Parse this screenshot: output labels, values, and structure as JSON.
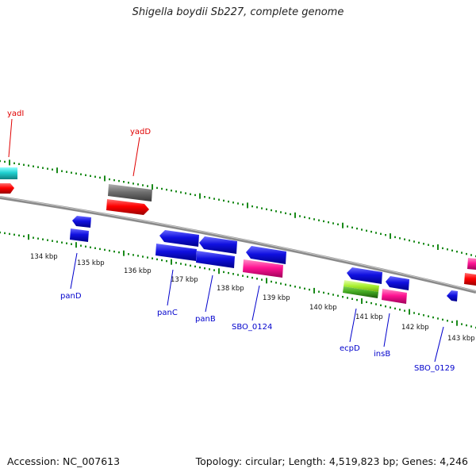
{
  "title": "Shigella boydii Sb227, complete genome",
  "footer": {
    "accession": "Accession: NC_007613",
    "summary": "Topology: circular; Length: 4,519,823 bp; Genes: 4,246"
  },
  "colors": {
    "backbone": "#8a8a8a",
    "tick": "#1a8a1a",
    "label_top": "#e00000",
    "label_bottom": "#0000cc",
    "gene_blue": "#1010e0",
    "gene_red": "#ff0000",
    "gene_gray": "#707070",
    "gene_cyan": "#20d0d0",
    "gene_magenta": "#ff1493",
    "gene_green": "#44aa22",
    "gene_lime": "#a8f030"
  },
  "scale_labels": [
    "134 kbp",
    "135 kbp",
    "136 kbp",
    "137 kbp",
    "138 kbp",
    "139 kbp",
    "140 kbp",
    "141 kbp",
    "142 kbp",
    "143 kbp"
  ],
  "gene_labels": {
    "top": [
      "yadI",
      "yadD"
    ],
    "bottom": [
      "panD",
      "panC",
      "panB",
      "SBO_0124",
      "ecpD",
      "insB",
      "SBO_0129"
    ]
  }
}
